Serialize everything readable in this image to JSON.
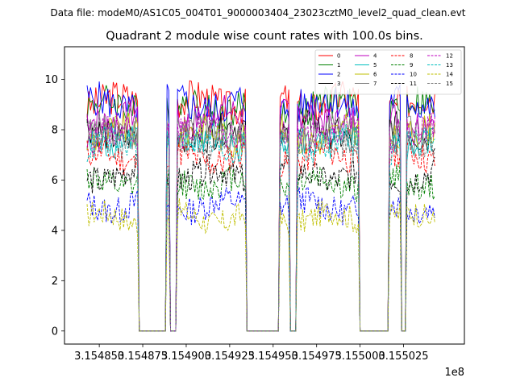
{
  "chart_data": {
    "type": "line",
    "suptitle": "Data file: modeM0/AS1C05_004T01_9000003404_23023cztM0_level2_quad_clean.evt",
    "title": "Quadrant 2 module wise count rates with 100.0s bins.",
    "xlabel": "",
    "ylabel": "",
    "x_offset_text": "1e8",
    "xlim": [
      315483000.0,
      315506000.0
    ],
    "ylim": [
      -0.52,
      11.3
    ],
    "x_ticks": [
      {
        "value": 315485000.0,
        "label": "3.154850"
      },
      {
        "value": 315487500.0,
        "label": "3.154875"
      },
      {
        "value": 315490000.0,
        "label": "3.154900"
      },
      {
        "value": 315492500.0,
        "label": "3.154925"
      },
      {
        "value": 315495000.0,
        "label": "3.154950"
      },
      {
        "value": 315497500.0,
        "label": "3.154975"
      },
      {
        "value": 315500000.0,
        "label": "3.155000"
      },
      {
        "value": 315502500.0,
        "label": "3.155025"
      }
    ],
    "y_ticks": [
      {
        "value": 0,
        "label": "0"
      },
      {
        "value": 2,
        "label": "2"
      },
      {
        "value": 4,
        "label": "4"
      },
      {
        "value": 6,
        "label": "6"
      },
      {
        "value": 8,
        "label": "8"
      },
      {
        "value": 10,
        "label": "10"
      }
    ],
    "bin_size_s": 100,
    "data_start": 315484300.0,
    "data_end": 315504300.0,
    "gaps": [
      {
        "start": 315487300.0,
        "end": 315488800.0
      },
      {
        "start": 315489100.0,
        "end": 315489400.0
      },
      {
        "start": 315493500.0,
        "end": 315495300.0
      },
      {
        "start": 315496000.0,
        "end": 315496300.0
      },
      {
        "start": 315500000.0,
        "end": 315501600.0
      },
      {
        "start": 315502400.0,
        "end": 315502600.0
      }
    ],
    "legend_location": "upper right",
    "legend_columns": 4,
    "series": [
      {
        "name": "0",
        "color": "#ff0000",
        "dash": "solid",
        "mean_level": 9.1
      },
      {
        "name": "1",
        "color": "#008000",
        "dash": "solid",
        "mean_level": 8.9
      },
      {
        "name": "2",
        "color": "#0000ff",
        "dash": "solid",
        "mean_level": 9.0
      },
      {
        "name": "3",
        "color": "#000000",
        "dash": "solid",
        "mean_level": 7.9
      },
      {
        "name": "4",
        "color": "#bf00bf",
        "dash": "solid",
        "mean_level": 8.5
      },
      {
        "name": "5",
        "color": "#00bfbf",
        "dash": "solid",
        "mean_level": 7.5
      },
      {
        "name": "6",
        "color": "#bfbf00",
        "dash": "solid",
        "mean_level": 7.8
      },
      {
        "name": "7",
        "color": "#808080",
        "dash": "solid",
        "mean_level": 7.9
      },
      {
        "name": "8",
        "color": "#ff0000",
        "dash": "dashed",
        "mean_level": 6.9
      },
      {
        "name": "9",
        "color": "#008000",
        "dash": "dashed",
        "mean_level": 5.9
      },
      {
        "name": "10",
        "color": "#0000ff",
        "dash": "dashed",
        "mean_level": 5.0
      },
      {
        "name": "11",
        "color": "#000000",
        "dash": "dashed",
        "mean_level": 6.2
      },
      {
        "name": "12",
        "color": "#bf00bf",
        "dash": "dashed",
        "mean_level": 7.9
      },
      {
        "name": "13",
        "color": "#00bfbf",
        "dash": "dashed",
        "mean_level": 7.4
      },
      {
        "name": "14",
        "color": "#bfbf00",
        "dash": "dashed",
        "mean_level": 4.5
      },
      {
        "name": "15",
        "color": "#808080",
        "dash": "dashed",
        "mean_level": 7.6
      }
    ]
  }
}
